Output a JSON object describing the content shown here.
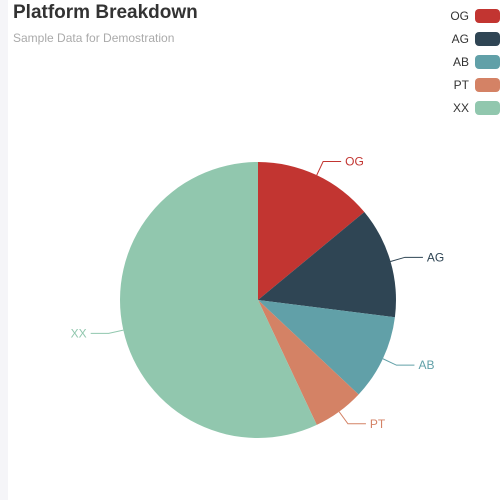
{
  "chart_data": {
    "type": "pie",
    "title": "Platform Breakdown",
    "subtitle": "Sample Data for Demostration",
    "legend_position": "top-right",
    "slices": [
      {
        "label": "OG",
        "value": 14,
        "color": "#c23531"
      },
      {
        "label": "AG",
        "value": 13,
        "color": "#2f4554"
      },
      {
        "label": "AB",
        "value": 10,
        "color": "#61a0a8"
      },
      {
        "label": "PT",
        "value": 6,
        "color": "#d48265"
      },
      {
        "label": "XX",
        "value": 57,
        "color": "#91c7ae"
      }
    ]
  }
}
